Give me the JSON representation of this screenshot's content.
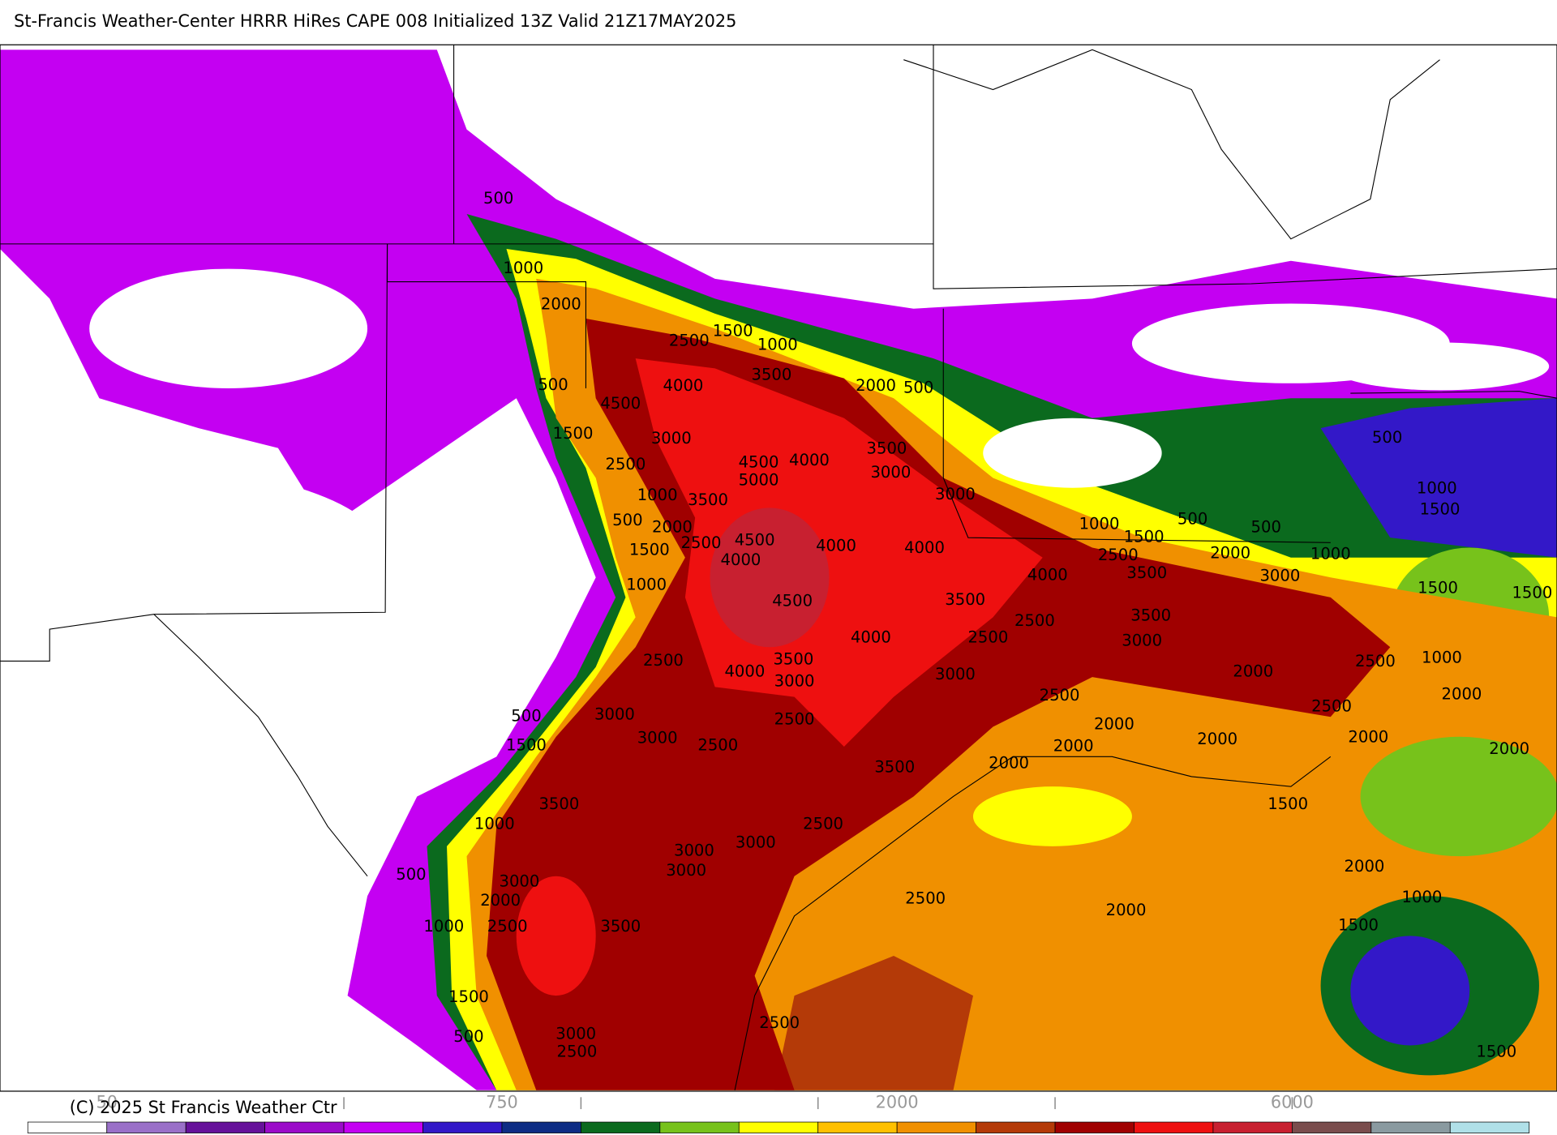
{
  "header": {
    "title": "St-Francis Weather-Center HRRR HiRes CAPE  008 Initialized  13Z Valid 21Z17MAY2025"
  },
  "contour_labels": [
    500,
    1000,
    2000,
    1500,
    2500,
    1000,
    3500,
    4000,
    500,
    4500,
    2000,
    500,
    1500,
    3000,
    3500,
    4500,
    4000,
    2500,
    3000,
    5000,
    1000,
    3500,
    3000,
    500,
    2000,
    1000,
    1500,
    500,
    500,
    4500,
    4000,
    4000,
    1500,
    2500,
    4000,
    2500,
    2000,
    3500,
    1000,
    3000,
    4000,
    1000,
    4500,
    3500,
    3500,
    2500,
    4000,
    2500,
    3000,
    1500,
    1500,
    1000,
    1500,
    500,
    1000,
    2500,
    2000,
    2500,
    3500,
    4000,
    3000,
    3000,
    2500,
    2500,
    2000,
    500,
    3000,
    2500,
    2000,
    1500,
    3000,
    2500,
    2000,
    2000,
    2000,
    2000,
    3500,
    2000,
    3500,
    1500,
    1000,
    2500,
    3000,
    3000,
    3000,
    2000,
    500,
    3000,
    2000,
    2500,
    2000,
    1000,
    1000,
    2500,
    3500,
    1500,
    1500,
    2500,
    3000,
    500,
    2500,
    1500
  ],
  "colorbar": {
    "colors": [
      "#ffffff",
      "#9a70c8",
      "#66119a",
      "#9b0cc9",
      "#c400f2",
      "#3318c8",
      "#0d2c84",
      "#0b6a1e",
      "#77c21b",
      "#ffff00",
      "#ffc000",
      "#f09000",
      "#b43a08",
      "#a00000",
      "#ee1010",
      "#c82030",
      "#7a4d4d",
      "#8a9aa0",
      "#b0e0e8"
    ],
    "labels": [
      "50",
      "750",
      "2000",
      "6000"
    ]
  },
  "footer": {
    "copyright": "(C) 2025 St Francis Weather Ctr"
  }
}
